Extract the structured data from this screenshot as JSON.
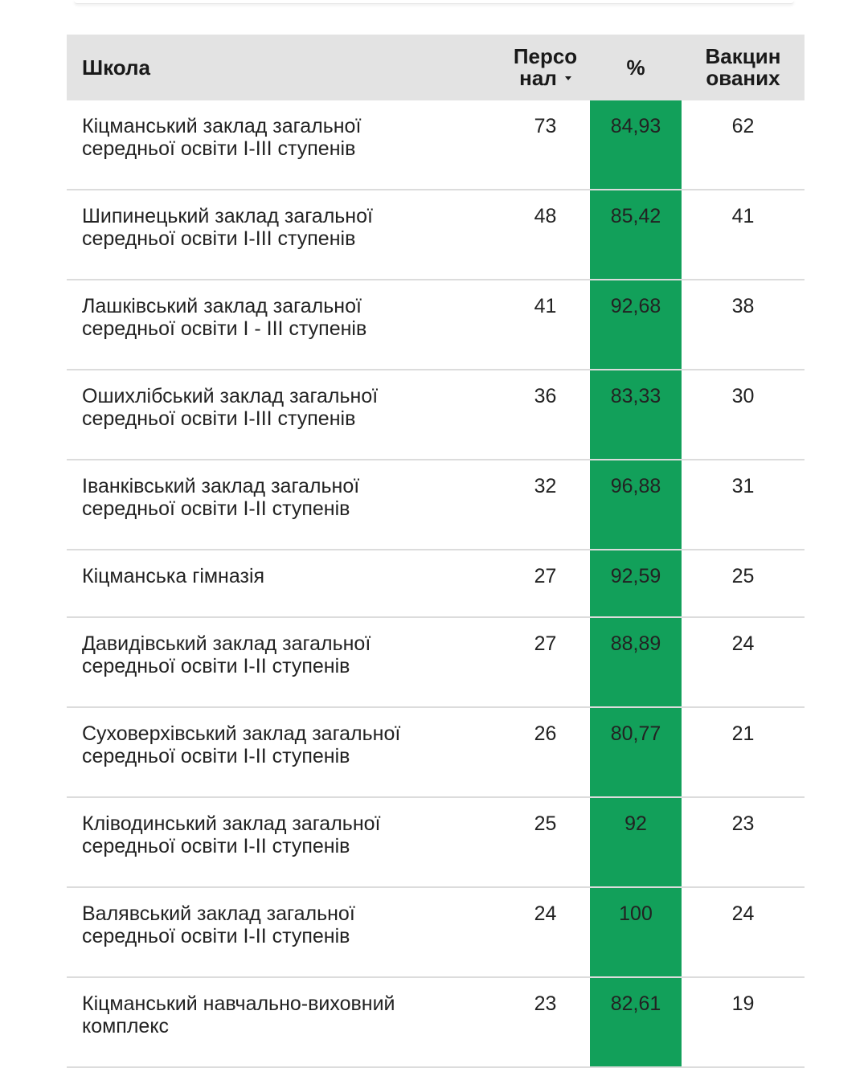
{
  "table": {
    "headers": {
      "school": "Школа",
      "staff_line1": "Персо",
      "staff_line2": "нал",
      "pct": "%",
      "vac_line1": "Вакцин",
      "vac_line2": "ованих"
    },
    "rows": [
      {
        "school_l1": "Кіцманський заклад загальної",
        "school_l2": "середньої освіти І-ІІІ ступенів",
        "staff": "73",
        "pct": "84,93",
        "vac": "62"
      },
      {
        "school_l1": "Шипинецький заклад загальної",
        "school_l2": "середньої освіти І-ІІІ ступенів",
        "staff": "48",
        "pct": "85,42",
        "vac": "41"
      },
      {
        "school_l1": "Лашківський заклад загальної",
        "school_l2": "середньої освіти І - ІІІ ступенів",
        "staff": "41",
        "pct": "92,68",
        "vac": "38"
      },
      {
        "school_l1": "Ошихлібський заклад загальної",
        "school_l2": "середньої освіти І-ІІІ ступенів",
        "staff": "36",
        "pct": "83,33",
        "vac": "30"
      },
      {
        "school_l1": "Іванківський заклад загальної",
        "school_l2": "середньої освіти І-ІІ ступенів",
        "staff": "32",
        "pct": "96,88",
        "vac": "31"
      },
      {
        "school_l1": "Кіцманська гімназія",
        "school_l2": "",
        "staff": "27",
        "pct": "92,59",
        "vac": "25"
      },
      {
        "school_l1": "Давидівський заклад загальної",
        "school_l2": "середньої освіти І-ІІ ступенів",
        "staff": "27",
        "pct": "88,89",
        "vac": "24"
      },
      {
        "school_l1": "Суховерхівський заклад загальної",
        "school_l2": "середньої освіти І-ІІ ступенів",
        "staff": "26",
        "pct": "80,77",
        "vac": "21"
      },
      {
        "school_l1": "Кліводинський заклад загальної",
        "school_l2": "середньої освіти І-ІІ ступенів",
        "staff": "25",
        "pct": "92",
        "vac": "23"
      },
      {
        "school_l1": "Валявський заклад загальної",
        "school_l2": "середньої освіти І-ІІ ступенів",
        "staff": "24",
        "pct": "100",
        "vac": "24"
      },
      {
        "school_l1": "Кіцманський навчально-виховний",
        "school_l2": "комплекс",
        "staff": "23",
        "pct": "82,61",
        "vac": "19"
      }
    ]
  },
  "colors": {
    "header_bg": "#e3e3e3",
    "pct_column": "#12a05a",
    "row_divider": "#dcdcdc"
  },
  "icons": {
    "sort": "sort-descending-icon"
  }
}
